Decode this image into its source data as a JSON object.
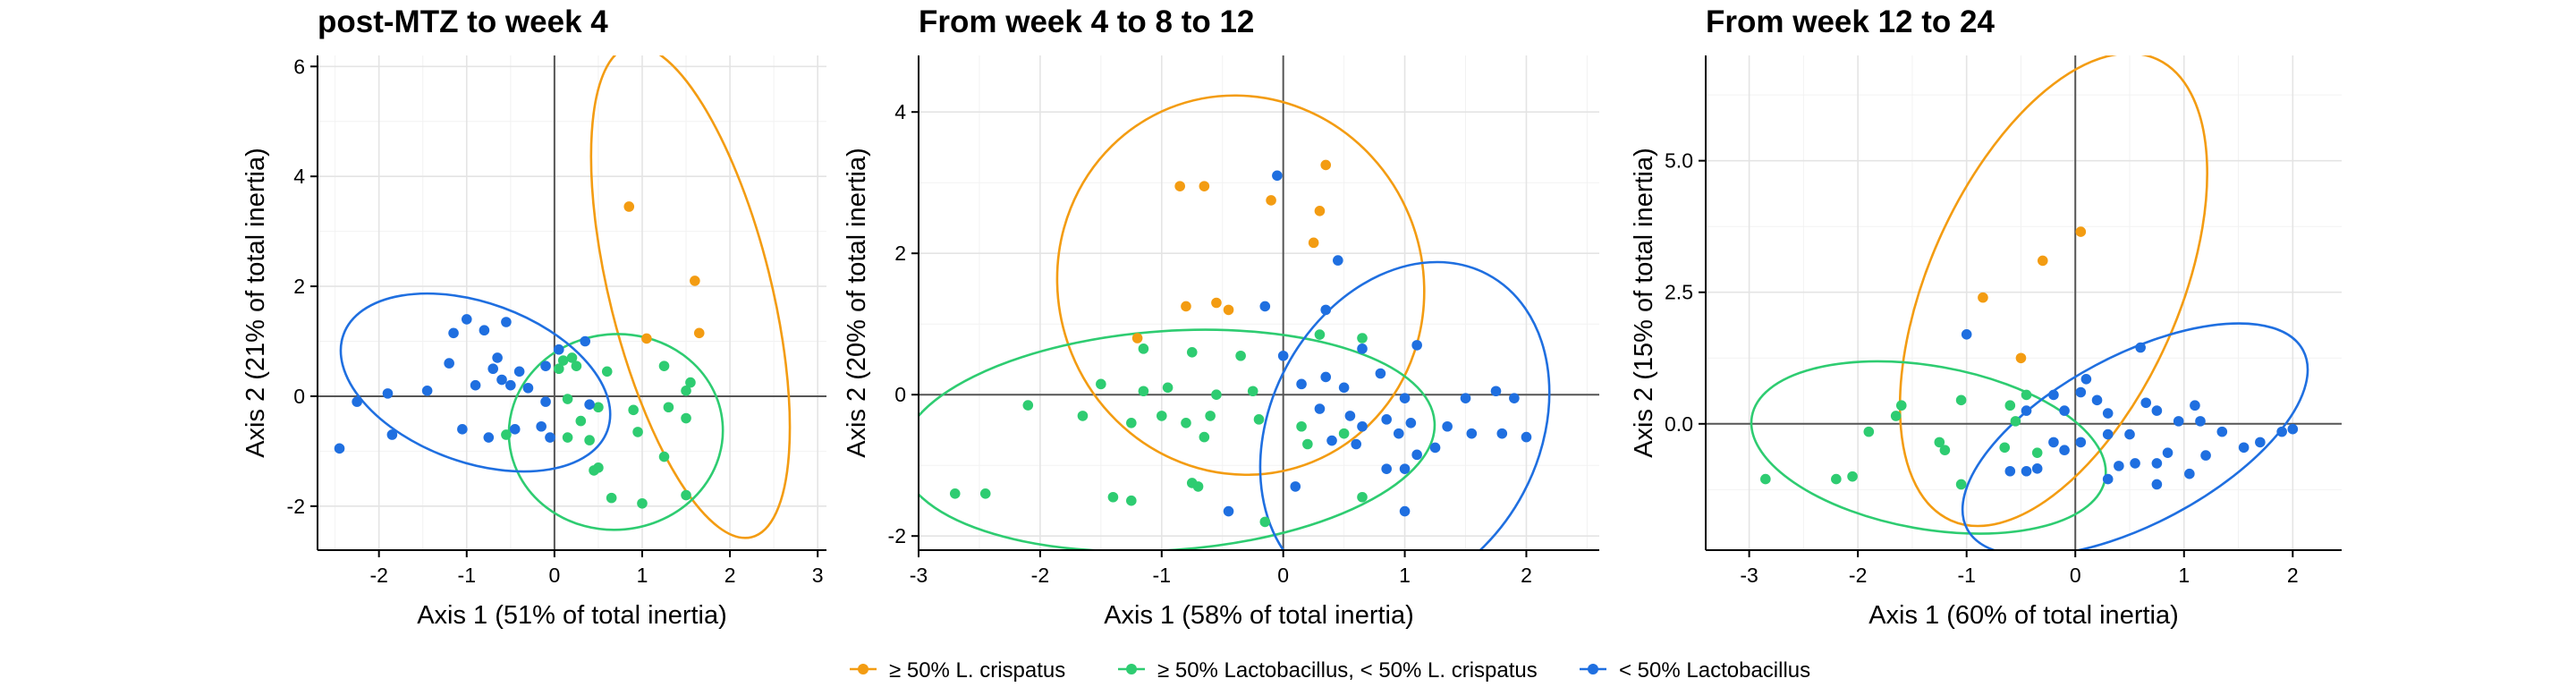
{
  "chart_data": [
    {
      "type": "scatter",
      "title": "post-MTZ to week 4",
      "xlabel": "Axis 1 (51% of total inertia)",
      "ylabel": "Axis 2 (21% of total inertia)",
      "xlim": [
        -2.7,
        3.1
      ],
      "ylim": [
        -2.8,
        6.2
      ],
      "xticks": [
        -2,
        -1,
        0,
        1,
        2,
        3
      ],
      "yticks": [
        -2,
        0,
        2,
        4,
        6
      ],
      "ytick_labels": [
        "-2",
        "0",
        "2",
        "4",
        "6"
      ],
      "grid": true,
      "series": [
        {
          "name": "≥ 50% L. crispatus",
          "color": "#f39c12",
          "points": [
            [
              0.85,
              3.45
            ],
            [
              1.6,
              2.1
            ],
            [
              1.65,
              1.15
            ],
            [
              1.05,
              1.05
            ]
          ],
          "ellipse": {
            "center": [
              1.55,
              1.9
            ],
            "radii": [
              0.92,
              4.6
            ],
            "angle": -14
          }
        },
        {
          "name": "≥ 50% Lactobacillus, < 50% L. crispatus",
          "color": "#2ecc71",
          "points": [
            [
              0.1,
              0.65
            ],
            [
              0.2,
              0.7
            ],
            [
              0.05,
              0.5
            ],
            [
              0.25,
              0.55
            ],
            [
              0.6,
              0.45
            ],
            [
              1.25,
              0.55
            ],
            [
              1.55,
              0.25
            ],
            [
              1.5,
              0.1
            ],
            [
              0.15,
              -0.05
            ],
            [
              0.5,
              -0.2
            ],
            [
              0.9,
              -0.25
            ],
            [
              1.3,
              -0.2
            ],
            [
              1.5,
              -0.4
            ],
            [
              0.3,
              -0.45
            ],
            [
              -0.55,
              -0.7
            ],
            [
              0.15,
              -0.75
            ],
            [
              0.4,
              -0.8
            ],
            [
              0.95,
              -0.65
            ],
            [
              1.25,
              -1.1
            ],
            [
              0.45,
              -1.35
            ],
            [
              0.5,
              -1.3
            ],
            [
              0.65,
              -1.85
            ],
            [
              1.0,
              -1.95
            ],
            [
              1.5,
              -1.8
            ]
          ],
          "ellipse": {
            "center": [
              0.7,
              -0.65
            ],
            "radii": [
              1.22,
              1.78
            ],
            "angle": -5
          }
        },
        {
          "name": "< 50% Lactobacillus",
          "color": "#1f6fe0",
          "points": [
            [
              -1.0,
              1.4
            ],
            [
              -0.8,
              1.2
            ],
            [
              -1.15,
              1.15
            ],
            [
              -0.55,
              1.35
            ],
            [
              -0.65,
              0.7
            ],
            [
              -1.2,
              0.6
            ],
            [
              -0.7,
              0.5
            ],
            [
              0.05,
              0.85
            ],
            [
              0.35,
              1.0
            ],
            [
              -0.4,
              0.45
            ],
            [
              -0.1,
              0.55
            ],
            [
              -0.6,
              0.3
            ],
            [
              -0.5,
              0.2
            ],
            [
              -0.9,
              0.2
            ],
            [
              -0.3,
              0.15
            ],
            [
              -1.45,
              0.1
            ],
            [
              -1.9,
              0.05
            ],
            [
              -2.25,
              -0.1
            ],
            [
              -0.1,
              -0.1
            ],
            [
              0.4,
              -0.15
            ],
            [
              -0.15,
              -0.55
            ],
            [
              -1.05,
              -0.6
            ],
            [
              -0.75,
              -0.75
            ],
            [
              -0.45,
              -0.6
            ],
            [
              -0.05,
              -0.75
            ],
            [
              -1.85,
              -0.7
            ],
            [
              -2.45,
              -0.95
            ]
          ],
          "ellipse": {
            "center": [
              -0.9,
              0.25
            ],
            "radii": [
              1.6,
              1.45
            ],
            "angle": 20
          }
        }
      ]
    },
    {
      "type": "scatter",
      "title": "From week 4 to 8 to 12",
      "xlabel": "Axis 1 (58% of total inertia)",
      "ylabel": "Axis 2 (20% of total inertia)",
      "xlim": [
        -3.0,
        2.6
      ],
      "ylim": [
        -2.2,
        4.8
      ],
      "xticks": [
        -3,
        -2,
        -1,
        0,
        1,
        2
      ],
      "yticks": [
        -2,
        0,
        2,
        4
      ],
      "ytick_labels": [
        "-2",
        "0",
        "2",
        "4"
      ],
      "grid": true,
      "series": [
        {
          "name": "≥ 50% L. crispatus",
          "color": "#f39c12",
          "points": [
            [
              -0.85,
              2.95
            ],
            [
              -0.65,
              2.95
            ],
            [
              -0.1,
              2.75
            ],
            [
              0.35,
              3.25
            ],
            [
              0.3,
              2.6
            ],
            [
              0.25,
              2.15
            ],
            [
              -0.8,
              1.25
            ],
            [
              -0.55,
              1.3
            ],
            [
              -0.45,
              1.2
            ],
            [
              -1.2,
              0.8
            ]
          ],
          "ellipse": {
            "center": [
              -0.35,
              1.55
            ],
            "radii": [
              1.5,
              2.7
            ],
            "angle": -22
          }
        },
        {
          "name": "≥ 50% Lactobacillus, < 50% L. crispatus",
          "color": "#2ecc71",
          "points": [
            [
              -1.15,
              0.65
            ],
            [
              -0.75,
              0.6
            ],
            [
              -0.35,
              0.55
            ],
            [
              0.3,
              0.85
            ],
            [
              0.65,
              0.8
            ],
            [
              -2.1,
              -0.15
            ],
            [
              -1.5,
              0.15
            ],
            [
              -1.15,
              0.05
            ],
            [
              -0.95,
              0.1
            ],
            [
              -0.55,
              0.0
            ],
            [
              -0.25,
              0.05
            ],
            [
              -1.65,
              -0.3
            ],
            [
              -1.25,
              -0.4
            ],
            [
              -1.0,
              -0.3
            ],
            [
              -0.8,
              -0.4
            ],
            [
              -0.6,
              -0.3
            ],
            [
              -0.2,
              -0.35
            ],
            [
              0.15,
              -0.45
            ],
            [
              -0.65,
              -0.6
            ],
            [
              0.5,
              -0.55
            ],
            [
              0.2,
              -0.7
            ],
            [
              -1.4,
              -1.45
            ],
            [
              -1.25,
              -1.5
            ],
            [
              -0.75,
              -1.25
            ],
            [
              -0.7,
              -1.3
            ],
            [
              -0.15,
              -1.8
            ],
            [
              0.65,
              -1.45
            ],
            [
              -2.7,
              -1.4
            ],
            [
              -2.45,
              -1.4
            ]
          ],
          "ellipse": {
            "center": [
              -0.95,
              -0.65
            ],
            "radii": [
              2.2,
              1.55
            ],
            "angle": -4
          }
        },
        {
          "name": "< 50% Lactobacillus",
          "color": "#1f6fe0",
          "points": [
            [
              -0.05,
              3.1
            ],
            [
              0.45,
              1.9
            ],
            [
              -0.15,
              1.25
            ],
            [
              0.35,
              1.2
            ],
            [
              1.1,
              0.7
            ],
            [
              0.65,
              0.65
            ],
            [
              0.0,
              0.55
            ],
            [
              1.75,
              0.05
            ],
            [
              1.9,
              -0.05
            ],
            [
              2.0,
              -0.6
            ],
            [
              0.15,
              0.15
            ],
            [
              0.35,
              0.25
            ],
            [
              0.5,
              0.1
            ],
            [
              0.8,
              0.3
            ],
            [
              1.0,
              -0.05
            ],
            [
              1.5,
              -0.05
            ],
            [
              0.3,
              -0.2
            ],
            [
              0.55,
              -0.3
            ],
            [
              0.65,
              -0.45
            ],
            [
              0.85,
              -0.35
            ],
            [
              1.05,
              -0.4
            ],
            [
              1.35,
              -0.45
            ],
            [
              1.55,
              -0.55
            ],
            [
              1.8,
              -0.55
            ],
            [
              0.4,
              -0.65
            ],
            [
              0.6,
              -0.7
            ],
            [
              0.95,
              -0.55
            ],
            [
              1.1,
              -0.85
            ],
            [
              1.25,
              -0.75
            ],
            [
              0.85,
              -1.05
            ],
            [
              0.1,
              -1.3
            ],
            [
              1.0,
              -1.05
            ],
            [
              -0.45,
              -1.65
            ],
            [
              1.0,
              -1.65
            ]
          ],
          "ellipse": {
            "center": [
              1.0,
              -0.5
            ],
            "radii": [
              1.45,
              1.9
            ],
            "angle": -62
          }
        }
      ]
    },
    {
      "type": "scatter",
      "title": "From week 12 to 24",
      "xlabel": "Axis 1 (60% of total inertia)",
      "ylabel": "Axis 2 (15% of total inertia)",
      "xlim": [
        -3.4,
        2.45
      ],
      "ylim": [
        -2.4,
        7.0
      ],
      "xticks": [
        -3,
        -2,
        -1,
        0,
        1,
        2
      ],
      "yticks": [
        0,
        2.5,
        5
      ],
      "ytick_labels": [
        "0.0",
        "2.5",
        "5.0"
      ],
      "grid": true,
      "series": [
        {
          "name": "≥ 50% L. crispatus",
          "color": "#f39c12",
          "points": [
            [
              0.05,
              3.65
            ],
            [
              -0.3,
              3.1
            ],
            [
              -0.85,
              2.4
            ],
            [
              -0.5,
              1.25
            ]
          ],
          "ellipse": {
            "center": [
              -0.2,
              2.55
            ],
            "radii": [
              1.15,
              4.8
            ],
            "angle": 24
          }
        },
        {
          "name": "≥ 50% Lactobacillus, < 50% L. crispatus",
          "color": "#2ecc71",
          "points": [
            [
              -1.6,
              0.35
            ],
            [
              -1.65,
              0.15
            ],
            [
              -1.05,
              0.45
            ],
            [
              -0.6,
              0.35
            ],
            [
              -0.45,
              0.55
            ],
            [
              -0.55,
              0.05
            ],
            [
              -1.9,
              -0.15
            ],
            [
              -1.25,
              -0.35
            ],
            [
              -1.2,
              -0.5
            ],
            [
              -0.65,
              -0.45
            ],
            [
              -0.35,
              -0.55
            ],
            [
              -2.2,
              -1.05
            ],
            [
              -2.05,
              -1.0
            ],
            [
              -2.85,
              -1.05
            ],
            [
              -1.05,
              -1.15
            ]
          ],
          "ellipse": {
            "center": [
              -1.35,
              -0.45
            ],
            "radii": [
              1.65,
              1.55
            ],
            "angle": 10
          }
        },
        {
          "name": "< 50% Lactobacillus",
          "color": "#1f6fe0",
          "points": [
            [
              -1.0,
              1.7
            ],
            [
              0.6,
              1.45
            ],
            [
              0.1,
              0.85
            ],
            [
              -0.2,
              0.55
            ],
            [
              0.05,
              0.6
            ],
            [
              0.2,
              0.45
            ],
            [
              0.65,
              0.4
            ],
            [
              1.1,
              0.35
            ],
            [
              -0.45,
              0.25
            ],
            [
              -0.1,
              0.25
            ],
            [
              0.3,
              0.2
            ],
            [
              0.75,
              0.25
            ],
            [
              0.95,
              0.05
            ],
            [
              1.15,
              0.05
            ],
            [
              1.35,
              -0.15
            ],
            [
              1.9,
              -0.15
            ],
            [
              2.0,
              -0.1
            ],
            [
              -0.2,
              -0.35
            ],
            [
              -0.1,
              -0.5
            ],
            [
              0.05,
              -0.35
            ],
            [
              0.3,
              -0.2
            ],
            [
              0.5,
              -0.2
            ],
            [
              0.85,
              -0.55
            ],
            [
              1.55,
              -0.45
            ],
            [
              1.7,
              -0.35
            ],
            [
              1.2,
              -0.6
            ],
            [
              1.05,
              -0.95
            ],
            [
              -0.6,
              -0.9
            ],
            [
              -0.45,
              -0.9
            ],
            [
              -0.35,
              -0.85
            ],
            [
              0.4,
              -0.8
            ],
            [
              0.55,
              -0.75
            ],
            [
              0.75,
              -0.75
            ],
            [
              0.3,
              -1.05
            ],
            [
              0.75,
              -1.15
            ]
          ],
          "ellipse": {
            "center": [
              0.55,
              -0.3
            ],
            "radii": [
              1.75,
              1.6
            ],
            "angle": -28
          }
        }
      ]
    }
  ],
  "legend": {
    "position": "bottom",
    "items": [
      {
        "label": "≥ 50% L. crispatus",
        "color": "#f39c12"
      },
      {
        "label": "≥ 50% Lactobacillus, < 50% L. crispatus",
        "color": "#2ecc71"
      },
      {
        "label": "< 50% Lactobacillus",
        "color": "#1f6fe0"
      }
    ]
  }
}
